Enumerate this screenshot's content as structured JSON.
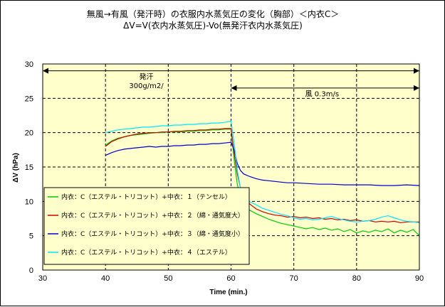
{
  "chart_data": {
    "type": "line",
    "title": "無風→有風（発汗時）の衣服内水蒸気圧の変化（胸部）＜内衣C＞",
    "subtitle": "ΔV=V(衣内水蒸気圧)-Vo(無発汗衣内水蒸気圧)",
    "xlabel": "Time  (min.)",
    "ylabel": "ΔV    (hPa)",
    "xlim": [
      30,
      90
    ],
    "ylim": [
      0,
      30
    ],
    "xticks": [
      "30",
      "40",
      "50",
      "60",
      "70",
      "80",
      "90"
    ],
    "yticks": [
      "0",
      "5",
      "10",
      "15",
      "20",
      "25",
      "30"
    ],
    "grid": true,
    "plot_background": "#ffffcc",
    "annotations": [
      {
        "text": "発汗",
        "x_from": 30,
        "x_to": 90,
        "y": 29
      },
      {
        "text": "300g/m2/",
        "anchor_x": 46.5,
        "anchor_y": 26.5
      },
      {
        "text": "風 0.3m/s",
        "x_from": 60,
        "x_to": 90,
        "y": 26.5
      }
    ],
    "legend_position": "bottom-left",
    "series": [
      {
        "name": "内衣：C（エステル・トリコット）+中衣：１（テンセル）",
        "color": "#00cc00",
        "points": [
          [
            40,
            18.2
          ],
          [
            41,
            18.8
          ],
          [
            42,
            19.2
          ],
          [
            43,
            19.4
          ],
          [
            44,
            19.6
          ],
          [
            45,
            19.7
          ],
          [
            46,
            19.8
          ],
          [
            47,
            19.9
          ],
          [
            48,
            20.0
          ],
          [
            49,
            20.0
          ],
          [
            50,
            20.1
          ],
          [
            51,
            20.1
          ],
          [
            52,
            20.1
          ],
          [
            53,
            20.2
          ],
          [
            54,
            20.2
          ],
          [
            55,
            20.3
          ],
          [
            56,
            20.3
          ],
          [
            57,
            20.4
          ],
          [
            58,
            20.4
          ],
          [
            59,
            20.5
          ],
          [
            60,
            20.5
          ],
          [
            60.5,
            16.0
          ],
          [
            61,
            12.5
          ],
          [
            61.5,
            10.5
          ],
          [
            62,
            9.5
          ],
          [
            63,
            8.7
          ],
          [
            64,
            8.2
          ],
          [
            65,
            7.8
          ],
          [
            66,
            7.4
          ],
          [
            67,
            7.1
          ],
          [
            68,
            6.8
          ],
          [
            69,
            6.6
          ],
          [
            70,
            6.4
          ],
          [
            71,
            6.2
          ],
          [
            72,
            6.0
          ],
          [
            73,
            6.2
          ],
          [
            74,
            5.9
          ],
          [
            75,
            6.1
          ],
          [
            76,
            5.8
          ],
          [
            77,
            6.0
          ],
          [
            78,
            5.6
          ],
          [
            79,
            5.9
          ],
          [
            80,
            5.4
          ],
          [
            81,
            5.7
          ],
          [
            82,
            5.5
          ],
          [
            83,
            5.8
          ],
          [
            84,
            5.6
          ],
          [
            85,
            6.0
          ],
          [
            86,
            5.4
          ],
          [
            87,
            5.8
          ],
          [
            88,
            5.5
          ],
          [
            89,
            5.9
          ],
          [
            90,
            5.0
          ]
        ]
      },
      {
        "name": "内衣：C（エステル・トリコット）+中衣：２（綿・通気度大）",
        "color": "#cc0000",
        "points": [
          [
            40,
            18.0
          ],
          [
            41,
            18.7
          ],
          [
            42,
            19.1
          ],
          [
            43,
            19.4
          ],
          [
            44,
            19.6
          ],
          [
            45,
            19.8
          ],
          [
            46,
            19.9
          ],
          [
            47,
            20.0
          ],
          [
            48,
            20.0
          ],
          [
            49,
            20.1
          ],
          [
            50,
            20.1
          ],
          [
            51,
            20.2
          ],
          [
            52,
            20.2
          ],
          [
            53,
            20.3
          ],
          [
            54,
            20.3
          ],
          [
            55,
            20.4
          ],
          [
            56,
            20.4
          ],
          [
            57,
            20.5
          ],
          [
            58,
            20.5
          ],
          [
            59,
            20.6
          ],
          [
            60,
            20.6
          ],
          [
            60.5,
            17.0
          ],
          [
            61,
            14.0
          ],
          [
            61.5,
            12.0
          ],
          [
            62,
            10.8
          ],
          [
            63,
            9.6
          ],
          [
            64,
            8.9
          ],
          [
            65,
            8.5
          ],
          [
            66,
            8.2
          ],
          [
            67,
            8.0
          ],
          [
            68,
            7.9
          ],
          [
            69,
            7.7
          ],
          [
            70,
            7.8
          ],
          [
            71,
            7.6
          ],
          [
            72,
            7.7
          ],
          [
            73,
            7.5
          ],
          [
            74,
            7.6
          ],
          [
            75,
            7.4
          ],
          [
            76,
            7.5
          ],
          [
            77,
            7.3
          ],
          [
            78,
            7.4
          ],
          [
            79,
            7.2
          ],
          [
            80,
            7.3
          ],
          [
            81,
            7.1
          ],
          [
            82,
            7.2
          ],
          [
            83,
            7.0
          ],
          [
            84,
            7.1
          ],
          [
            85,
            7.0
          ],
          [
            86,
            7.1
          ],
          [
            87,
            6.9
          ],
          [
            88,
            7.0
          ],
          [
            89,
            7.0
          ],
          [
            90,
            7.0
          ]
        ]
      },
      {
        "name": "内衣：C（エステル・トリコット）+中衣：３（綿・通気度小）",
        "color": "#0000cc",
        "points": [
          [
            40,
            16.7
          ],
          [
            41,
            17.1
          ],
          [
            42,
            17.4
          ],
          [
            43,
            17.6
          ],
          [
            44,
            17.7
          ],
          [
            45,
            17.8
          ],
          [
            46,
            17.9
          ],
          [
            47,
            18.0
          ],
          [
            48,
            17.9
          ],
          [
            49,
            18.0
          ],
          [
            50,
            18.0
          ],
          [
            51,
            18.1
          ],
          [
            52,
            18.1
          ],
          [
            53,
            18.2
          ],
          [
            54,
            18.2
          ],
          [
            55,
            18.3
          ],
          [
            56,
            18.3
          ],
          [
            57,
            18.4
          ],
          [
            58,
            18.4
          ],
          [
            59,
            18.5
          ],
          [
            60,
            18.6
          ],
          [
            60.5,
            17.5
          ],
          [
            61,
            15.5
          ],
          [
            61.5,
            14.5
          ],
          [
            62,
            14.0
          ],
          [
            63,
            13.6
          ],
          [
            64,
            13.3
          ],
          [
            65,
            13.1
          ],
          [
            66,
            13.0
          ],
          [
            67,
            12.9
          ],
          [
            68,
            12.8
          ],
          [
            69,
            12.7
          ],
          [
            70,
            12.7
          ],
          [
            72,
            12.6
          ],
          [
            74,
            12.5
          ],
          [
            76,
            12.5
          ],
          [
            78,
            12.4
          ],
          [
            80,
            12.4
          ],
          [
            82,
            12.4
          ],
          [
            84,
            12.3
          ],
          [
            86,
            12.3
          ],
          [
            88,
            12.4
          ],
          [
            90,
            12.3
          ]
        ]
      },
      {
        "name": "内衣：C（エステル・トリコット）+中衣：４（エステル）",
        "color": "#00e5ff",
        "points": [
          [
            40,
            20.0
          ],
          [
            41,
            20.2
          ],
          [
            42,
            20.4
          ],
          [
            43,
            20.5
          ],
          [
            44,
            20.6
          ],
          [
            45,
            20.7
          ],
          [
            46,
            20.8
          ],
          [
            47,
            20.8
          ],
          [
            48,
            20.9
          ],
          [
            49,
            21.0
          ],
          [
            50,
            21.0
          ],
          [
            51,
            21.1
          ],
          [
            52,
            21.1
          ],
          [
            53,
            21.2
          ],
          [
            54,
            21.2
          ],
          [
            55,
            21.3
          ],
          [
            56,
            21.3
          ],
          [
            57,
            21.4
          ],
          [
            58,
            21.4
          ],
          [
            59,
            21.5
          ],
          [
            59.5,
            21.6
          ],
          [
            60,
            21.7
          ],
          [
            60.5,
            18.5
          ],
          [
            61,
            14.5
          ],
          [
            61.5,
            12.0
          ],
          [
            62,
            10.8
          ],
          [
            63,
            9.9
          ],
          [
            64,
            9.5
          ],
          [
            65,
            9.0
          ],
          [
            66,
            8.7
          ],
          [
            67,
            8.4
          ],
          [
            68,
            8.1
          ],
          [
            69,
            7.9
          ],
          [
            70,
            7.6
          ],
          [
            71,
            7.4
          ],
          [
            72,
            7.5
          ],
          [
            73,
            7.3
          ],
          [
            74,
            7.4
          ],
          [
            75,
            7.6
          ],
          [
            76,
            7.8
          ],
          [
            77,
            7.5
          ],
          [
            78,
            7.3
          ],
          [
            79,
            7.1
          ],
          [
            80,
            7.0
          ],
          [
            81,
            7.1
          ],
          [
            82,
            7.2
          ],
          [
            83,
            7.4
          ],
          [
            84,
            7.7
          ],
          [
            85,
            7.9
          ],
          [
            86,
            7.6
          ],
          [
            87,
            7.3
          ],
          [
            88,
            7.1
          ],
          [
            89,
            7.0
          ],
          [
            90,
            6.9
          ]
        ]
      }
    ]
  }
}
